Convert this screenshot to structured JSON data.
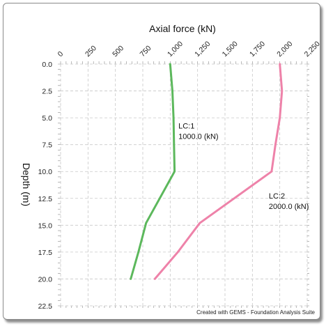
{
  "footer": "Created with GEMS - Foundation Analysis Suite",
  "chart_data": {
    "type": "line",
    "title": "",
    "xlabel": "Axial force  (kN)",
    "ylabel": "Depth  (m)",
    "xlim": [
      0,
      2250
    ],
    "ylim": [
      0,
      22.5
    ],
    "x_axis_position": "top",
    "y_inverted": true,
    "x_ticks": [
      0,
      250,
      500,
      750,
      1000,
      1250,
      1500,
      1750,
      2000,
      2250
    ],
    "x_tick_labels": [
      "0",
      "250",
      "500",
      "750",
      "1,000",
      "1,250",
      "1,500",
      "1,750",
      "2,000",
      "2,250"
    ],
    "y_ticks": [
      0,
      2.5,
      5,
      7.5,
      10,
      12.5,
      15,
      17.5,
      20,
      22.5
    ],
    "y_tick_labels": [
      "0.0",
      "2.5",
      "5.0",
      "7.5",
      "10.0",
      "12.5",
      "15.0",
      "17.5",
      "20.0",
      "22.5"
    ],
    "grid": true,
    "series": [
      {
        "name": "LC:1",
        "value_label": "1000.0 (kN)",
        "color": "#5cb85c",
        "points": [
          [
            1000,
            0
          ],
          [
            1020,
            2.5
          ],
          [
            1030,
            5
          ],
          [
            1035,
            7.5
          ],
          [
            1040,
            10
          ],
          [
            780,
            14.8
          ],
          [
            710,
            17.5
          ],
          [
            640,
            20
          ]
        ]
      },
      {
        "name": "LC:2",
        "value_label": "2000.0 (kN)",
        "color": "#ee82a9",
        "points": [
          [
            2000,
            0
          ],
          [
            2020,
            2.5
          ],
          [
            2000,
            5
          ],
          [
            1960,
            7.5
          ],
          [
            1925,
            10
          ],
          [
            1270,
            14.8
          ],
          [
            1070,
            17.5
          ],
          [
            860,
            20
          ]
        ]
      }
    ]
  }
}
